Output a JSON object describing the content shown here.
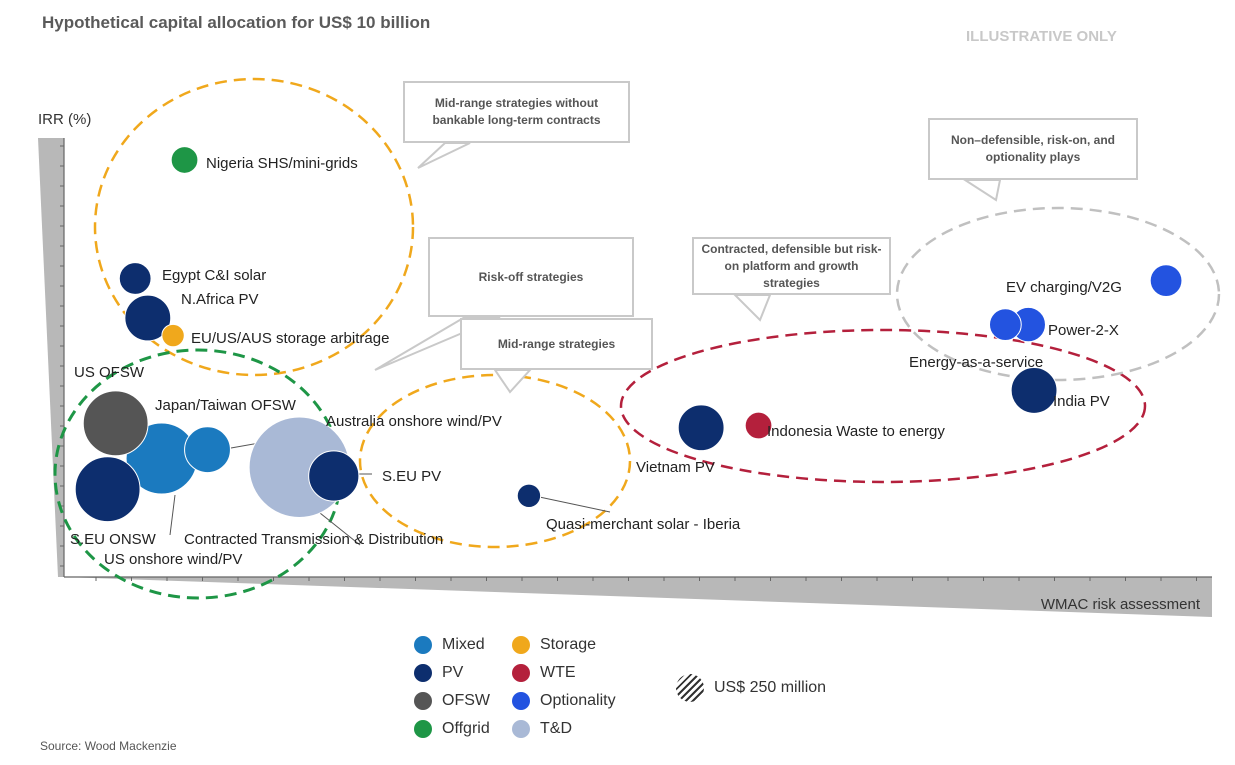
{
  "title": "Hypothetical capital allocation for US$ 10 billion",
  "watermark": "ILLUSTRATIVE ONLY",
  "source": "Source: Wood Mackenzie",
  "colors": {
    "Mixed": "#1b7abf",
    "PV": "#0d2e6e",
    "OFSW": "#555555",
    "Offgrid": "#1e9646",
    "Storage": "#f0a81c",
    "WTE": "#b4203c",
    "Optionality": "#2353e0",
    "T&D": "#a9b9d6"
  },
  "callouts": [
    {
      "id": "midrange-no-contracts",
      "text": "Mid-range strategies without bankable long-term contracts"
    },
    {
      "id": "risk-off",
      "text": "Risk-off strategies"
    },
    {
      "id": "midrange",
      "text": "Mid-range strategies"
    },
    {
      "id": "contracted",
      "text": "Contracted, defensible but risk-on platform and growth strategies"
    },
    {
      "id": "non-defensible",
      "text": "Non–defensible, risk-on, and optionality plays"
    }
  ],
  "legend": [
    {
      "label": "Mixed",
      "category": "Mixed"
    },
    {
      "label": "PV",
      "category": "PV"
    },
    {
      "label": "OFSW",
      "category": "OFSW"
    },
    {
      "label": "Offgrid",
      "category": "Offgrid"
    },
    {
      "label": "Storage",
      "category": "Storage"
    },
    {
      "label": "WTE",
      "category": "WTE"
    },
    {
      "label": "Optionality",
      "category": "Optionality"
    },
    {
      "label": "T&D",
      "category": "T&D"
    }
  ],
  "size_legend": "US$ 250 million",
  "chart_data": {
    "type": "scatter",
    "title": "Hypothetical capital allocation for US$ 10 billion",
    "xlabel": "WMAC risk assessment",
    "ylabel": "IRR (%)",
    "xlim": [
      0,
      100
    ],
    "ylim": [
      0,
      100
    ],
    "legend_position": "bottom-center",
    "points": [
      {
        "label": "Nigeria SHS/mini-grids",
        "category": "Offgrid",
        "x": 10.5,
        "y": 95,
        "size": 0.85
      },
      {
        "label": "Egypt C&I solar",
        "category": "PV",
        "x": 6.2,
        "y": 68,
        "size": 1.2
      },
      {
        "label": "N.Africa PV",
        "category": "PV",
        "x": 7.3,
        "y": 59,
        "size": 2.5
      },
      {
        "label": "EU/US/AUS storage arbitrage",
        "category": "Storage",
        "x": 9.5,
        "y": 55,
        "size": 0.6
      },
      {
        "label": "US OFSW",
        "category": "OFSW",
        "x": 4.5,
        "y": 35,
        "size": 5.0
      },
      {
        "label": "Japan/Taiwan OFSW",
        "category": "Mixed",
        "x": 8.5,
        "y": 27,
        "size": 6.0
      },
      {
        "label": "Australia onshore wind/PV",
        "category": "Mixed",
        "x": 12.5,
        "y": 29,
        "size": 2.5
      },
      {
        "label": "S.EU ONSW",
        "category": "PV",
        "x": 3.8,
        "y": 20,
        "size": 5.0
      },
      {
        "label": "US onshore wind/PV",
        "category": "Mixed",
        "x": 8.5,
        "y": 27,
        "size": 6.0
      },
      {
        "label": "Contracted Transmission & Distribution",
        "category": "T&D",
        "x": 20.5,
        "y": 25,
        "size": 12.0
      },
      {
        "label": "S.EU PV",
        "category": "PV",
        "x": 23.5,
        "y": 23,
        "size": 3.0
      },
      {
        "label": "Quasi-merchant solar - Iberia",
        "category": "PV",
        "x": 40.5,
        "y": 18.5,
        "size": 0.65
      },
      {
        "label": "Vietnam PV",
        "category": "PV",
        "x": 55.5,
        "y": 34,
        "size": 2.5
      },
      {
        "label": "Indonesia Waste to energy",
        "category": "WTE",
        "x": 60.5,
        "y": 34.5,
        "size": 0.85
      },
      {
        "label": "India PV",
        "category": "PV",
        "x": 84.5,
        "y": 42.5,
        "size": 2.5
      },
      {
        "label": "Energy-as-a-service",
        "category": "Optionality",
        "x": 82,
        "y": 57.5,
        "size": 1.2
      },
      {
        "label": "Power-2-X",
        "category": "Optionality",
        "x": 84,
        "y": 57.5,
        "size": 1.4
      },
      {
        "label": "EV charging/V2G",
        "category": "Optionality",
        "x": 96,
        "y": 67.5,
        "size": 1.2
      }
    ]
  }
}
